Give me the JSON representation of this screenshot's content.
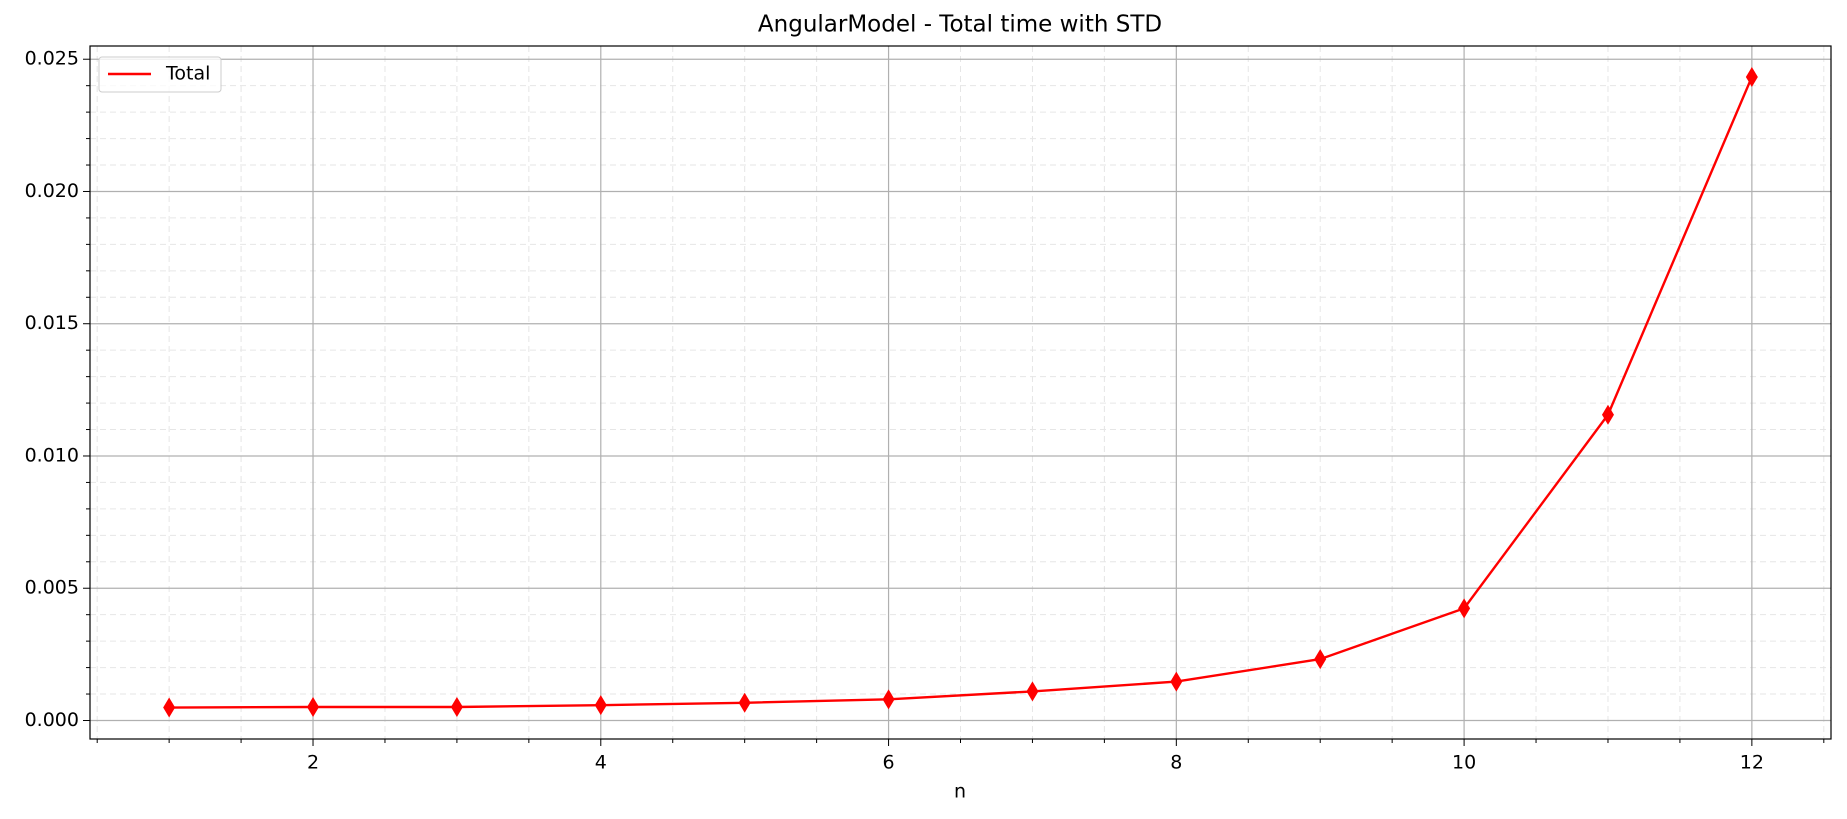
{
  "chart_data": {
    "type": "line",
    "title": "AngularModel - Total time with STD",
    "x_label": "n",
    "x": [
      1,
      2,
      3,
      4,
      5,
      6,
      7,
      8,
      9,
      10,
      11,
      12
    ],
    "series": [
      {
        "name": "Total",
        "color": "#ff0000",
        "marker": "diamond",
        "values": [
          0.00049,
          0.00051,
          0.00051,
          0.00058,
          0.00067,
          0.0008,
          0.0011,
          0.00147,
          0.00232,
          0.00424,
          0.01156,
          0.02433
        ]
      }
    ],
    "xlim": [
      0.45,
      12.55
    ],
    "ylim": [
      -0.0007,
      0.0255
    ],
    "xticks": [
      2,
      4,
      6,
      8,
      10,
      12
    ],
    "yticks": [
      {
        "value": 0,
        "label": "0.000"
      },
      {
        "value": 0.005,
        "label": "0.005"
      },
      {
        "value": 0.01,
        "label": "0.010"
      },
      {
        "value": 0.015,
        "label": "0.015"
      },
      {
        "value": 0.02,
        "label": "0.020"
      },
      {
        "value": 0.025,
        "label": "0.025"
      }
    ],
    "minor_xticks": [
      0.5,
      1,
      1.5,
      2.5,
      3,
      3.5,
      4.5,
      5,
      5.5,
      6.5,
      7,
      7.5,
      8.5,
      9,
      9.5,
      10.5,
      11,
      11.5,
      12.5
    ],
    "minor_yticks": [
      0.001,
      0.002,
      0.003,
      0.004,
      0.006,
      0.007,
      0.008,
      0.009,
      0.011,
      0.012,
      0.013,
      0.014,
      0.016,
      0.017,
      0.018,
      0.019,
      0.021,
      0.022,
      0.023,
      0.024
    ],
    "grid": true,
    "minor_grid": true,
    "legend": "upper left"
  }
}
